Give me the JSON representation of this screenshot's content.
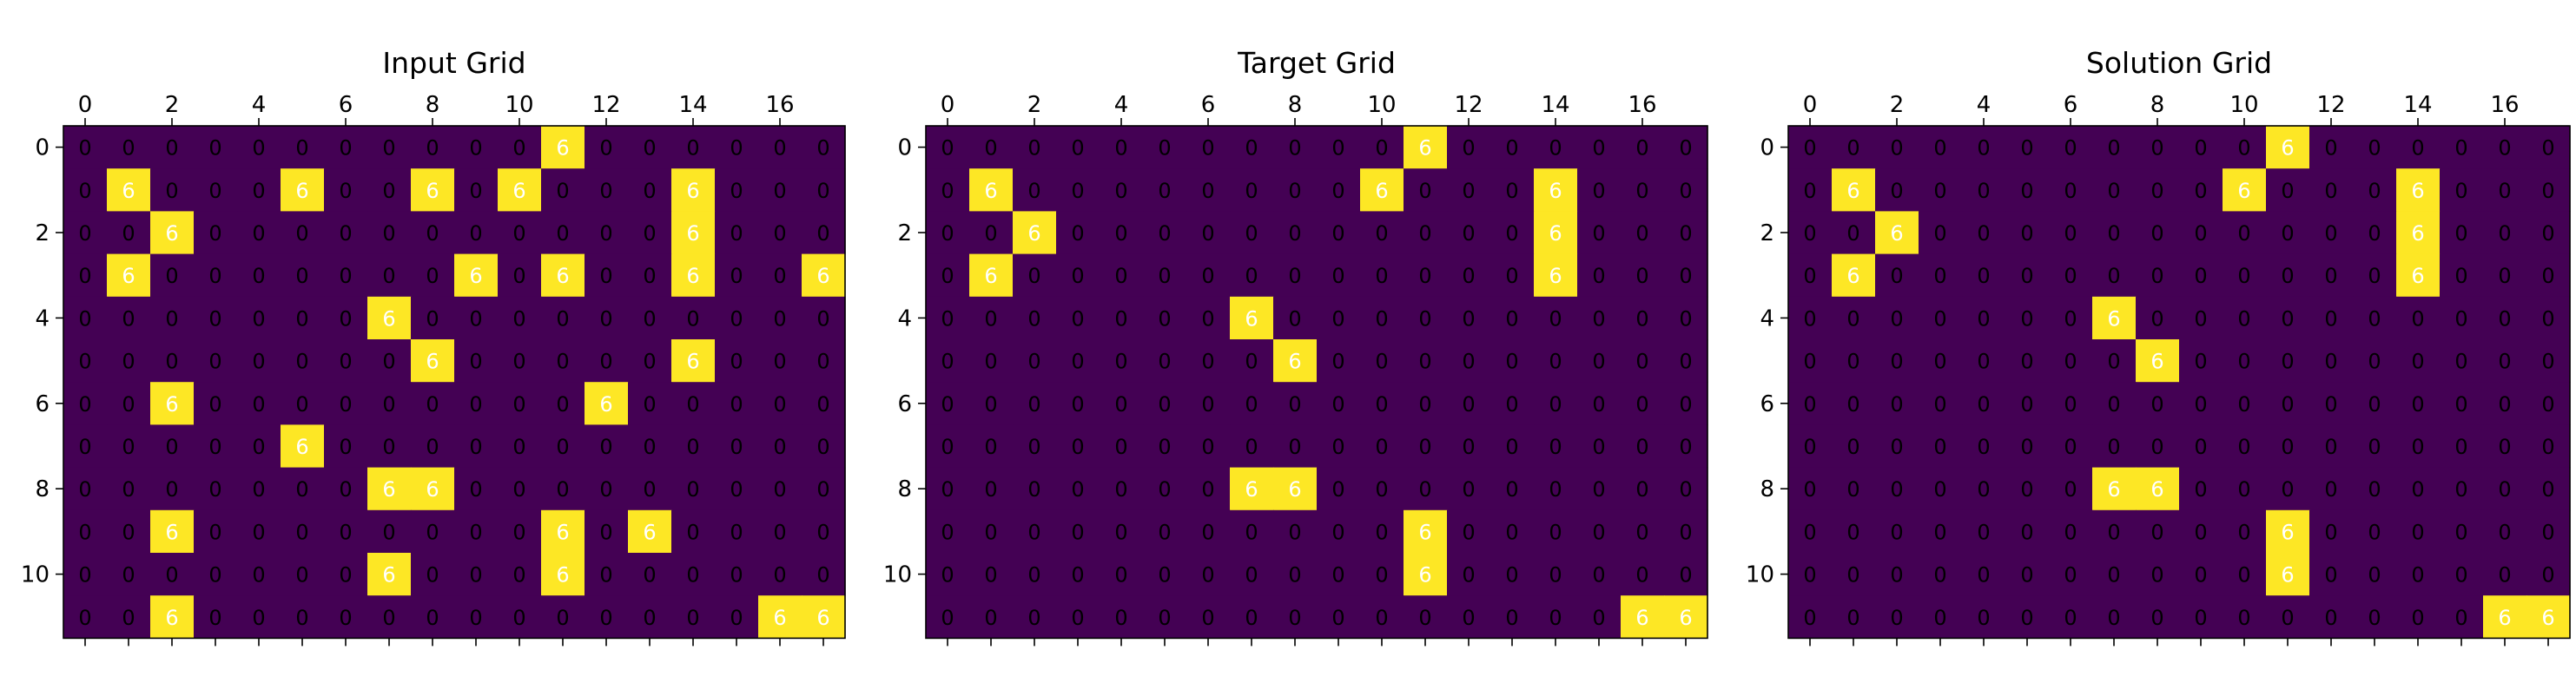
{
  "colors": {
    "background_cell": "#440154",
    "highlight_cell": "#fde725",
    "text_on_background": "#000000",
    "text_on_highlight": "#ffffff"
  },
  "chart_data": [
    {
      "type": "heatmap",
      "title": "Input Grid",
      "x_ticks": [
        "0",
        "2",
        "4",
        "6",
        "8",
        "10",
        "12",
        "14",
        "16"
      ],
      "y_ticks": [
        "0",
        "2",
        "4",
        "6",
        "8",
        "10"
      ],
      "rows": 12,
      "cols": 18,
      "grid": [
        [
          0,
          0,
          0,
          0,
          0,
          0,
          0,
          0,
          0,
          0,
          0,
          6,
          0,
          0,
          0,
          0,
          0,
          0
        ],
        [
          0,
          6,
          0,
          0,
          0,
          6,
          0,
          0,
          6,
          0,
          6,
          0,
          0,
          0,
          6,
          0,
          0,
          0
        ],
        [
          0,
          0,
          6,
          0,
          0,
          0,
          0,
          0,
          0,
          0,
          0,
          0,
          0,
          0,
          6,
          0,
          0,
          0
        ],
        [
          0,
          6,
          0,
          0,
          0,
          0,
          0,
          0,
          0,
          6,
          0,
          6,
          0,
          0,
          6,
          0,
          0,
          6
        ],
        [
          0,
          0,
          0,
          0,
          0,
          0,
          0,
          6,
          0,
          0,
          0,
          0,
          0,
          0,
          0,
          0,
          0,
          0
        ],
        [
          0,
          0,
          0,
          0,
          0,
          0,
          0,
          0,
          6,
          0,
          0,
          0,
          0,
          0,
          6,
          0,
          0,
          0
        ],
        [
          0,
          0,
          6,
          0,
          0,
          0,
          0,
          0,
          0,
          0,
          0,
          0,
          6,
          0,
          0,
          0,
          0,
          0
        ],
        [
          0,
          0,
          0,
          0,
          0,
          6,
          0,
          0,
          0,
          0,
          0,
          0,
          0,
          0,
          0,
          0,
          0,
          0
        ],
        [
          0,
          0,
          0,
          0,
          0,
          0,
          0,
          6,
          6,
          0,
          0,
          0,
          0,
          0,
          0,
          0,
          0,
          0
        ],
        [
          0,
          0,
          6,
          0,
          0,
          0,
          0,
          0,
          0,
          0,
          0,
          6,
          0,
          6,
          0,
          0,
          0,
          0
        ],
        [
          0,
          0,
          0,
          0,
          0,
          0,
          0,
          6,
          0,
          0,
          0,
          6,
          0,
          0,
          0,
          0,
          0,
          0
        ],
        [
          0,
          0,
          6,
          0,
          0,
          0,
          0,
          0,
          0,
          0,
          0,
          0,
          0,
          0,
          0,
          0,
          6,
          6
        ]
      ]
    },
    {
      "type": "heatmap",
      "title": "Target Grid",
      "x_ticks": [
        "0",
        "2",
        "4",
        "6",
        "8",
        "10",
        "12",
        "14",
        "16"
      ],
      "y_ticks": [
        "0",
        "2",
        "4",
        "6",
        "8",
        "10"
      ],
      "rows": 12,
      "cols": 18,
      "grid": [
        [
          0,
          0,
          0,
          0,
          0,
          0,
          0,
          0,
          0,
          0,
          0,
          6,
          0,
          0,
          0,
          0,
          0,
          0
        ],
        [
          0,
          6,
          0,
          0,
          0,
          0,
          0,
          0,
          0,
          0,
          6,
          0,
          0,
          0,
          6,
          0,
          0,
          0
        ],
        [
          0,
          0,
          6,
          0,
          0,
          0,
          0,
          0,
          0,
          0,
          0,
          0,
          0,
          0,
          6,
          0,
          0,
          0
        ],
        [
          0,
          6,
          0,
          0,
          0,
          0,
          0,
          0,
          0,
          0,
          0,
          0,
          0,
          0,
          6,
          0,
          0,
          0
        ],
        [
          0,
          0,
          0,
          0,
          0,
          0,
          0,
          6,
          0,
          0,
          0,
          0,
          0,
          0,
          0,
          0,
          0,
          0
        ],
        [
          0,
          0,
          0,
          0,
          0,
          0,
          0,
          0,
          6,
          0,
          0,
          0,
          0,
          0,
          0,
          0,
          0,
          0
        ],
        [
          0,
          0,
          0,
          0,
          0,
          0,
          0,
          0,
          0,
          0,
          0,
          0,
          0,
          0,
          0,
          0,
          0,
          0
        ],
        [
          0,
          0,
          0,
          0,
          0,
          0,
          0,
          0,
          0,
          0,
          0,
          0,
          0,
          0,
          0,
          0,
          0,
          0
        ],
        [
          0,
          0,
          0,
          0,
          0,
          0,
          0,
          6,
          6,
          0,
          0,
          0,
          0,
          0,
          0,
          0,
          0,
          0
        ],
        [
          0,
          0,
          0,
          0,
          0,
          0,
          0,
          0,
          0,
          0,
          0,
          6,
          0,
          0,
          0,
          0,
          0,
          0
        ],
        [
          0,
          0,
          0,
          0,
          0,
          0,
          0,
          0,
          0,
          0,
          0,
          6,
          0,
          0,
          0,
          0,
          0,
          0
        ],
        [
          0,
          0,
          0,
          0,
          0,
          0,
          0,
          0,
          0,
          0,
          0,
          0,
          0,
          0,
          0,
          0,
          6,
          6
        ]
      ]
    },
    {
      "type": "heatmap",
      "title": "Solution Grid",
      "x_ticks": [
        "0",
        "2",
        "4",
        "6",
        "8",
        "10",
        "12",
        "14",
        "16"
      ],
      "y_ticks": [
        "0",
        "2",
        "4",
        "6",
        "8",
        "10"
      ],
      "rows": 12,
      "cols": 18,
      "grid": [
        [
          0,
          0,
          0,
          0,
          0,
          0,
          0,
          0,
          0,
          0,
          0,
          6,
          0,
          0,
          0,
          0,
          0,
          0
        ],
        [
          0,
          6,
          0,
          0,
          0,
          0,
          0,
          0,
          0,
          0,
          6,
          0,
          0,
          0,
          6,
          0,
          0,
          0
        ],
        [
          0,
          0,
          6,
          0,
          0,
          0,
          0,
          0,
          0,
          0,
          0,
          0,
          0,
          0,
          6,
          0,
          0,
          0
        ],
        [
          0,
          6,
          0,
          0,
          0,
          0,
          0,
          0,
          0,
          0,
          0,
          0,
          0,
          0,
          6,
          0,
          0,
          0
        ],
        [
          0,
          0,
          0,
          0,
          0,
          0,
          0,
          6,
          0,
          0,
          0,
          0,
          0,
          0,
          0,
          0,
          0,
          0
        ],
        [
          0,
          0,
          0,
          0,
          0,
          0,
          0,
          0,
          6,
          0,
          0,
          0,
          0,
          0,
          0,
          0,
          0,
          0
        ],
        [
          0,
          0,
          0,
          0,
          0,
          0,
          0,
          0,
          0,
          0,
          0,
          0,
          0,
          0,
          0,
          0,
          0,
          0
        ],
        [
          0,
          0,
          0,
          0,
          0,
          0,
          0,
          0,
          0,
          0,
          0,
          0,
          0,
          0,
          0,
          0,
          0,
          0
        ],
        [
          0,
          0,
          0,
          0,
          0,
          0,
          0,
          6,
          6,
          0,
          0,
          0,
          0,
          0,
          0,
          0,
          0,
          0
        ],
        [
          0,
          0,
          0,
          0,
          0,
          0,
          0,
          0,
          0,
          0,
          0,
          6,
          0,
          0,
          0,
          0,
          0,
          0
        ],
        [
          0,
          0,
          0,
          0,
          0,
          0,
          0,
          0,
          0,
          0,
          0,
          6,
          0,
          0,
          0,
          0,
          0,
          0
        ],
        [
          0,
          0,
          0,
          0,
          0,
          0,
          0,
          0,
          0,
          0,
          0,
          0,
          0,
          0,
          0,
          0,
          6,
          6
        ]
      ]
    }
  ]
}
